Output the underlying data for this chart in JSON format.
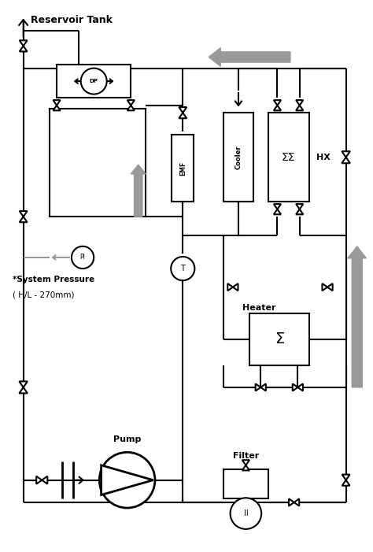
{
  "bg": "#ffffff",
  "lc": "#000000",
  "gc": "#999999",
  "lw": 1.5,
  "lw2": 2.0,
  "lw3": 3.0,
  "texts": {
    "reservoir": "Reservoir Tank",
    "pump": "Pump",
    "filter": "Filter",
    "heater": "Heater",
    "cooler": "Cooler",
    "hx": "HX",
    "emf": "EMF",
    "dp": "DP",
    "pi": "PI",
    "t": "T",
    "sys1": "*System Pressure",
    "sys2": "( H/L - 270mm)",
    "ii": "II",
    "sigma": "Σ",
    "sigma2": "ΣΣ"
  }
}
